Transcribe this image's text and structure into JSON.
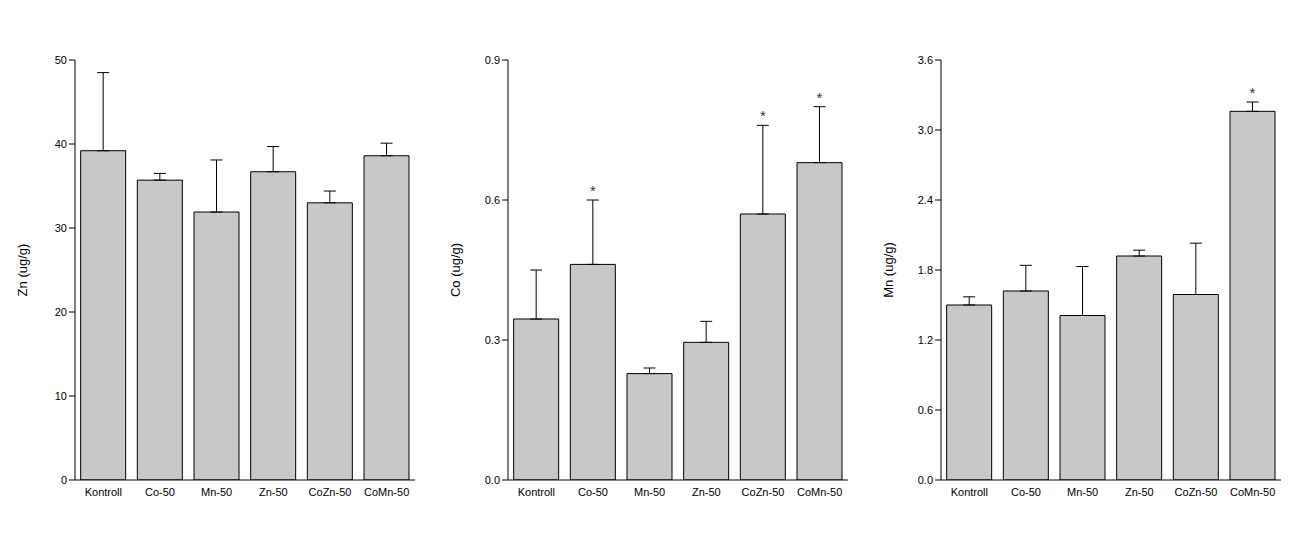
{
  "chart_data": [
    {
      "type": "bar",
      "y_label": "Zn (ug/g)",
      "categories": [
        "Kontroll",
        "Co-50",
        "Mn-50",
        "Zn-50",
        "CoZn-50",
        "CoMn-50"
      ],
      "values": [
        39.2,
        35.7,
        31.9,
        36.7,
        33.0,
        38.6
      ],
      "errors": [
        9.3,
        0.8,
        6.2,
        3.0,
        1.4,
        1.5
      ],
      "color": "#c8c8c8",
      "ylim": [
        0,
        50
      ],
      "yticks": [
        0,
        10,
        20,
        30,
        40,
        50
      ],
      "annotations": []
    },
    {
      "type": "bar",
      "y_label": "Co (ug/g)",
      "categories": [
        "Kontroll",
        "Co-50",
        "Mn-50",
        "Zn-50",
        "CoZn-50",
        "CoMn-50"
      ],
      "values": [
        0.345,
        0.462,
        0.228,
        0.295,
        0.57,
        0.68
      ],
      "errors": [
        0.105,
        0.138,
        0.012,
        0.045,
        0.19,
        0.12
      ],
      "color": "#c8c8c8",
      "ylim": [
        0,
        0.9
      ],
      "yticks": [
        {
          "value": 0,
          "label": "0.0"
        },
        0.3,
        0.6,
        0.9
      ],
      "annotations": [
        {
          "category": "Co-50",
          "text": "*"
        },
        {
          "category": "CoZn-50",
          "text": "*"
        },
        {
          "category": "CoMn-50",
          "text": "*"
        }
      ]
    },
    {
      "type": "bar",
      "y_label": "Mn (ug/g)",
      "categories": [
        "Kontroll",
        "Co-50",
        "Mn-50",
        "Zn-50",
        "CoZn-50",
        "CoMn-50"
      ],
      "values": [
        1.5,
        1.62,
        1.41,
        1.92,
        1.59,
        3.16
      ],
      "errors": [
        0.07,
        0.22,
        0.42,
        0.05,
        0.44,
        0.08
      ],
      "color": "#c8c8c8",
      "ylim": [
        0,
        3.6
      ],
      "yticks": [
        {
          "value": 0,
          "label": "0.0"
        },
        0.6,
        1.2,
        1.8,
        2.4,
        {
          "value": 3,
          "label": "3.0"
        },
        3.6
      ],
      "annotations": [
        {
          "category": "CoMn-50",
          "text": "*"
        }
      ]
    }
  ]
}
